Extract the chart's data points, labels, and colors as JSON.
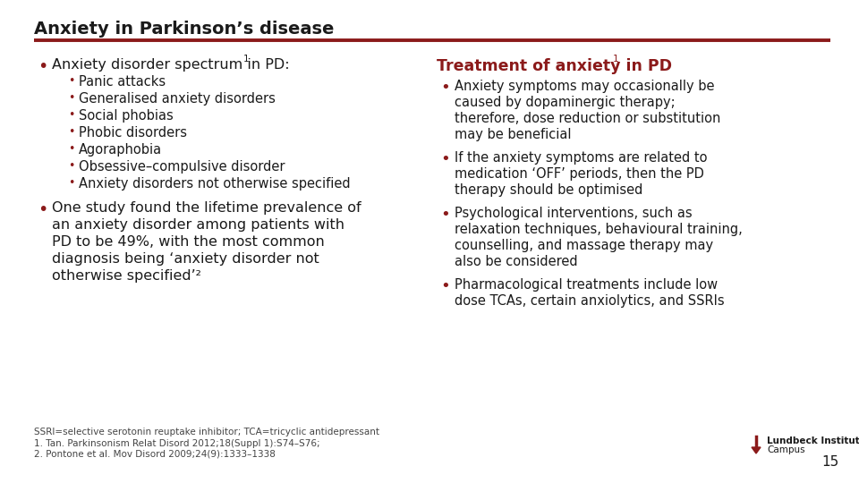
{
  "title": "Anxiety in Parkinson’s disease",
  "title_color": "#1a1a1a",
  "line_color": "#8B1A1A",
  "bg_color": "#ffffff",
  "bullet_color": "#8B1A1A",
  "text_color": "#1a1a1a",
  "left_col": {
    "main_bullet1": "Anxiety disorder spectrum in PD:",
    "main_bullet1_sup": "1",
    "sub_bullets": [
      "Panic attacks",
      "Generalised anxiety disorders",
      "Social phobias",
      "Phobic disorders",
      "Agoraphobia",
      "Obsessive–compulsive disorder",
      "Anxiety disorders not otherwise specified"
    ],
    "main_bullet2_line1": "One study found the lifetime prevalence of",
    "main_bullet2_line2": "an anxiety disorder among patients with",
    "main_bullet2_line3": "PD to be 49%, with the most common",
    "main_bullet2_line4": "diagnosis being ‘anxiety disorder not",
    "main_bullet2_line5": "otherwise specified’²"
  },
  "right_col": {
    "heading": "Treatment of anxiety in PD",
    "heading_sup": "1",
    "heading_color": "#8B1A1A",
    "bullet1_lines": [
      "Anxiety symptoms may occasionally be",
      "caused by dopaminergic therapy;",
      "therefore, dose reduction or substitution",
      "may be beneficial"
    ],
    "bullet2_lines": [
      "If the anxiety symptoms are related to",
      "medication ‘OFF’ periods, then the PD",
      "therapy should be optimised"
    ],
    "bullet3_lines": [
      "Psychological interventions, such as",
      "relaxation techniques, behavioural training,",
      "counselling, and massage therapy may",
      "also be considered"
    ],
    "bullet4_lines": [
      "Pharmacological treatments include low",
      "dose TCAs, certain anxiolytics, and SSRIs"
    ]
  },
  "footnote1": "SSRI=selective serotonin reuptake inhibitor; TCA=tricyclic antidepressant",
  "footnote2a": "1. Tan. Parkinsonism Relat Disord 2012;18(Suppl 1):S74–S76;",
  "footnote2b": "2. Pontone et al. Mov Disord 2009;24(9):1333–1338",
  "page_number": "15",
  "logo_text1": "Lundbeck Institute",
  "logo_text2": "Campus"
}
